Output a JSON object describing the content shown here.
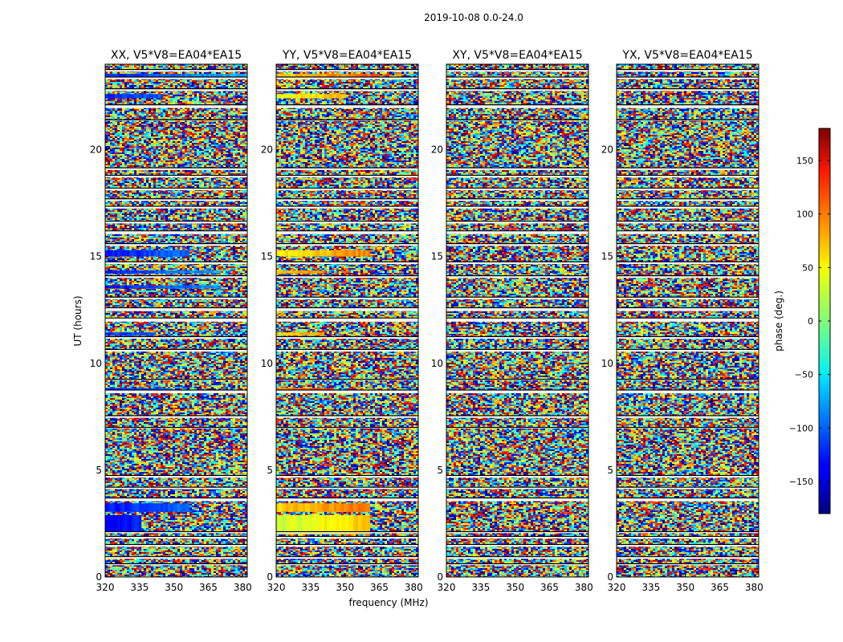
{
  "suptitle": "2019-10-08 0.0-24.0",
  "chart_data": {
    "type": "heatmap",
    "x_label": "frequency (MHz)",
    "y_label": "UT (hours)",
    "xlim": [
      320,
      382
    ],
    "ylim": [
      0,
      24
    ],
    "x_ticks": [
      320,
      335,
      350,
      365,
      380
    ],
    "y_ticks": [
      0,
      5,
      10,
      15,
      20
    ],
    "colorbar": {
      "label": "phase (deg.)",
      "range": [
        -180,
        180
      ],
      "ticks": [
        -150,
        -100,
        -50,
        0,
        50,
        100,
        150
      ],
      "colormap": "jet"
    },
    "panels": [
      {
        "title": "XX, V5*V8=EA04*EA15",
        "pol": "XX"
      },
      {
        "title": "YY, V5*V8=EA04*EA15",
        "pol": "YY"
      },
      {
        "title": "XY, V5*V8=EA04*EA15",
        "pol": "XY"
      },
      {
        "title": "YX, V5*V8=EA04*EA15",
        "pol": "YX"
      }
    ],
    "flagged_hours": [
      [
        0.55,
        0.62
      ],
      [
        0.85,
        0.95
      ],
      [
        1.42,
        1.52
      ],
      [
        1.8,
        1.9
      ],
      [
        2.05,
        2.12
      ],
      [
        3.55,
        3.7
      ],
      [
        4.12,
        4.2
      ],
      [
        4.65,
        4.75
      ],
      [
        6.95,
        7.0
      ],
      [
        7.45,
        7.55
      ],
      [
        8.6,
        8.75
      ],
      [
        9.2,
        9.25
      ],
      [
        10.55,
        10.65
      ],
      [
        11.15,
        11.25
      ],
      [
        11.95,
        12.12
      ],
      [
        12.45,
        12.6
      ],
      [
        13.0,
        13.1
      ],
      [
        14.0,
        14.1
      ],
      [
        14.65,
        14.75
      ],
      [
        15.5,
        15.6
      ],
      [
        16.05,
        16.2
      ],
      [
        16.55,
        16.65
      ],
      [
        17.25,
        17.35
      ],
      [
        17.6,
        17.7
      ],
      [
        18.1,
        18.2
      ],
      [
        18.7,
        18.8
      ],
      [
        19.05,
        19.15
      ],
      [
        21.35,
        21.4
      ],
      [
        21.95,
        22.1
      ],
      [
        22.75,
        22.85
      ],
      [
        23.3,
        23.4
      ],
      [
        23.65,
        23.75
      ]
    ],
    "coherent_bands": {
      "XX": [
        {
          "from": 23.3,
          "to": 23.55,
          "phase": -125,
          "until_mhz": 382
        },
        {
          "from": 22.4,
          "to": 22.6,
          "phase": -125,
          "until_mhz": 345
        },
        {
          "from": 15.0,
          "to": 15.3,
          "phase": -130,
          "until_mhz": 356
        },
        {
          "from": 14.2,
          "to": 14.35,
          "phase": -125,
          "until_mhz": 370
        },
        {
          "from": 13.5,
          "to": 13.65,
          "phase": -130,
          "until_mhz": 370
        },
        {
          "from": 11.3,
          "to": 11.45,
          "phase": -120,
          "until_mhz": 342
        },
        {
          "from": 8.6,
          "to": 8.85,
          "phase": -125,
          "until_mhz": 348
        },
        {
          "from": 3.05,
          "to": 3.45,
          "phase": -130,
          "until_mhz": 356
        },
        {
          "from": 2.1,
          "to": 2.9,
          "phase": -140,
          "until_mhz": 335
        }
      ],
      "YY": [
        {
          "from": 23.3,
          "to": 23.55,
          "phase": 60,
          "until_mhz": 365
        },
        {
          "from": 22.4,
          "to": 22.6,
          "phase": 40,
          "until_mhz": 350
        },
        {
          "from": 15.0,
          "to": 15.3,
          "phase": 50,
          "until_mhz": 360
        },
        {
          "from": 14.2,
          "to": 14.35,
          "phase": 70,
          "until_mhz": 340
        },
        {
          "from": 11.3,
          "to": 11.45,
          "phase": 60,
          "until_mhz": 340
        },
        {
          "from": 8.6,
          "to": 8.85,
          "phase": 90,
          "until_mhz": 345
        },
        {
          "from": 3.05,
          "to": 3.45,
          "phase": 60,
          "until_mhz": 360
        },
        {
          "from": 2.0,
          "to": 2.9,
          "phase": 25,
          "until_mhz": 360
        }
      ],
      "XY": [],
      "YX": []
    }
  }
}
